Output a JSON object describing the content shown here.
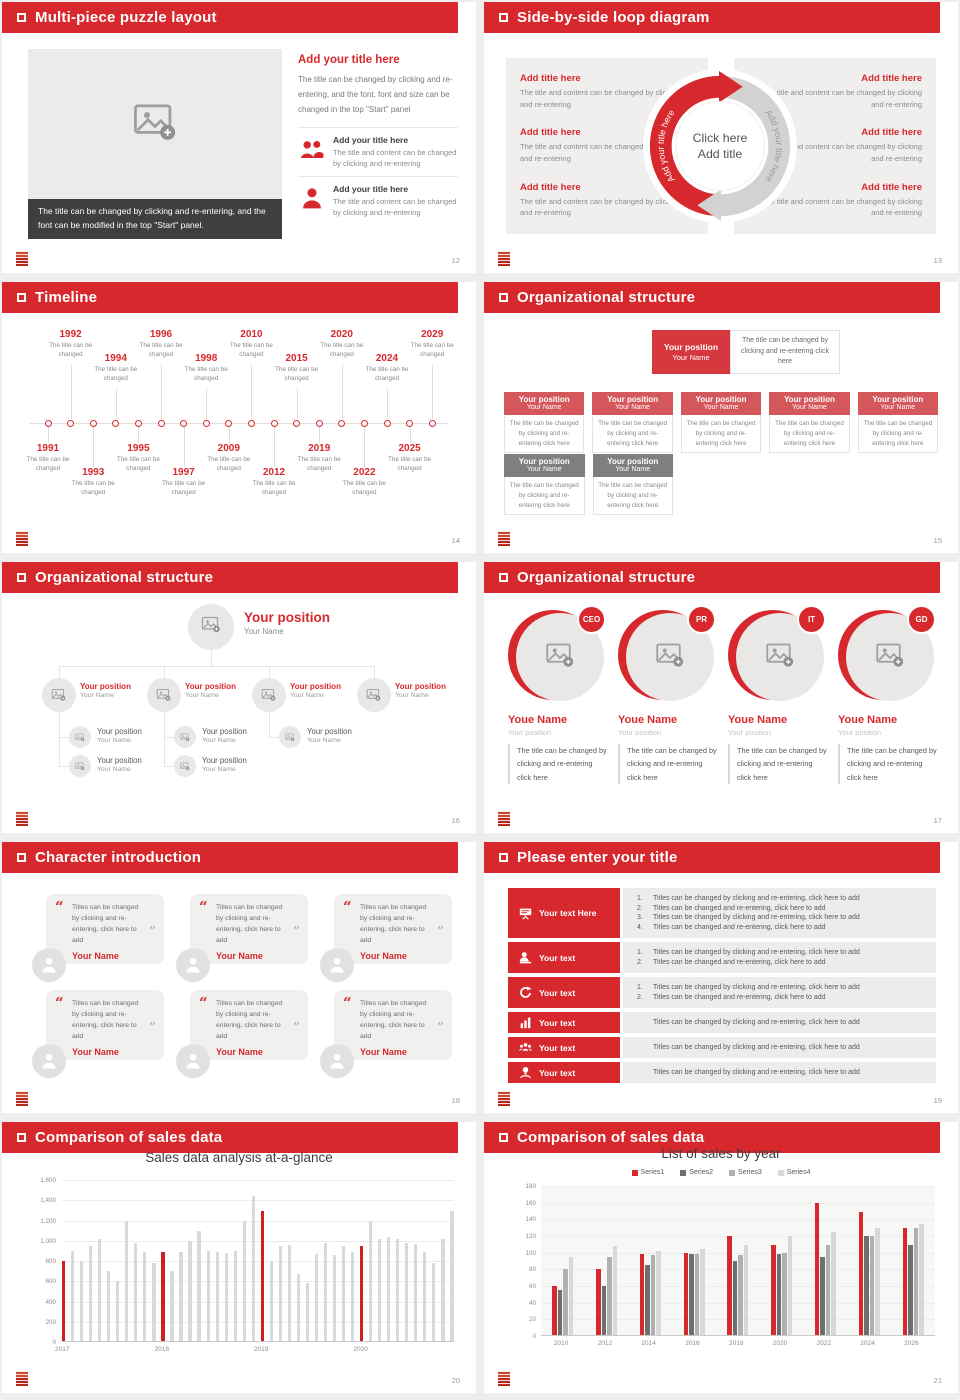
{
  "accent_color": "#d7282d",
  "slides": {
    "s12": {
      "header": "Multi-piece puzzle layout",
      "page": "12",
      "caption": "The title can be changed by clicking and re-entering, and the font can be modified in the top \"Start\" panel.",
      "right_title": "Add your title here",
      "right_body": "The title can be changed by clicking and re-entering, and the font, font and size can be changed in the top \"Start\" panel",
      "items": [
        {
          "icon": "people",
          "title": "Add your title here",
          "text": "The title and content can be changed by clicking and re-entering"
        },
        {
          "icon": "person",
          "title": "Add your title here",
          "text": "The title and content can be changed by clicking and re-entering"
        }
      ]
    },
    "s13": {
      "header": "Side-by-side loop diagram",
      "page": "13",
      "left_items": [
        {
          "title": "Add title here",
          "text": "The title and content can be changed by clicking and re-entering"
        },
        {
          "title": "Add title here",
          "text": "The title and content can be changed by clicking and re-entering"
        },
        {
          "title": "Add title here",
          "text": "The title and content can be changed by clicking and re-entering"
        }
      ],
      "right_items": [
        {
          "title": "Add title here",
          "text": "The title and content can be changed by clicking and re-entering"
        },
        {
          "title": "Add title here",
          "text": "The title and content can be changed by clicking and re-entering"
        },
        {
          "title": "Add title here",
          "text": "The title and content can be changed by clicking and re-entering"
        }
      ],
      "center_line1": "Click here",
      "center_line2": "Add title",
      "arc_text_left": "Add your title here",
      "arc_text_right": "Add your title here"
    },
    "s14": {
      "header": "Timeline",
      "page": "14",
      "items": [
        {
          "year": "1991",
          "caption": "The title can be changed",
          "side": "b1"
        },
        {
          "year": "1992",
          "caption": "The title can be changed",
          "side": "a2"
        },
        {
          "year": "1993",
          "caption": "The title can be changed",
          "side": "b2"
        },
        {
          "year": "1994",
          "caption": "The title can be changed",
          "side": "a1"
        },
        {
          "year": "1995",
          "caption": "The title can be changed",
          "side": "b1"
        },
        {
          "year": "1996",
          "caption": "The title can be changed",
          "side": "a2"
        },
        {
          "year": "1997",
          "caption": "The title can be changed",
          "side": "b2"
        },
        {
          "year": "1998",
          "caption": "The title can be changed",
          "side": "a1"
        },
        {
          "year": "2009",
          "caption": "The title can be changed",
          "side": "b1"
        },
        {
          "year": "2010",
          "caption": "The title can be changed",
          "side": "a2"
        },
        {
          "year": "2012",
          "caption": "The title can be changed",
          "side": "b2"
        },
        {
          "year": "2015",
          "caption": "The title can be changed",
          "side": "a1"
        },
        {
          "year": "2019",
          "caption": "The title can be changed",
          "side": "b1"
        },
        {
          "year": "2020",
          "caption": "The title can be changed",
          "side": "a2"
        },
        {
          "year": "2022",
          "caption": "The title can be changed",
          "side": "b2"
        },
        {
          "year": "2024",
          "caption": "The title can be changed",
          "side": "a1"
        },
        {
          "year": "2025",
          "caption": "The title can be changed",
          "side": "b1"
        },
        {
          "year": "2029",
          "caption": "The title can be changed",
          "side": "a2"
        }
      ]
    },
    "s15": {
      "header": "Organizational structure",
      "page": "15",
      "top": {
        "position": "Your position",
        "name": "Your Name",
        "note": "The title can be changed by clicking and re-entering click here"
      },
      "cards_red": [
        {
          "position": "Your position",
          "name": "Your Name",
          "text": "The title can be changed by clicking and re-entering click here"
        },
        {
          "position": "Your position",
          "name": "Your Name",
          "text": "The title can be changed by clicking and re-entering click here"
        },
        {
          "position": "Your position",
          "name": "Your Name",
          "text": "The title can be changed by clicking and re-entering click here"
        },
        {
          "position": "Your position",
          "name": "Your Name",
          "text": "The title can be changed by clicking and re-entering click here"
        },
        {
          "position": "Your position",
          "name": "Your Name",
          "text": "The title can be changed by clicking and re-entering click here"
        }
      ],
      "cards_gray": [
        {
          "position": "Your position",
          "name": "Your Name",
          "text": "The title can be changed by clicking and re-entering click here"
        },
        {
          "position": "Your position",
          "name": "Your Name",
          "text": "The title can be changed by clicking and re-entering click here"
        }
      ]
    },
    "s16": {
      "header": "Organizational structure",
      "page": "16",
      "root": {
        "position": "Your position",
        "name": "Your Name"
      },
      "branches": [
        {
          "position": "Your position",
          "name": "Your Name",
          "children": [
            {
              "position": "Your position",
              "name": "Your Name"
            },
            {
              "position": "Your position",
              "name": "Your Name"
            }
          ]
        },
        {
          "position": "Your position",
          "name": "Your Name",
          "children": [
            {
              "position": "Your position",
              "name": "Your Name"
            },
            {
              "position": "Your position",
              "name": "Your Name"
            }
          ]
        },
        {
          "position": "Your position",
          "name": "Your Name",
          "children": [
            {
              "position": "Your position",
              "name": "Your Name"
            }
          ]
        },
        {
          "position": "Your position",
          "name": "Your Name",
          "children": []
        }
      ]
    },
    "s17": {
      "header": "Organizational structure",
      "page": "17",
      "profiles": [
        {
          "badge": "CEO",
          "name": "Youe Name",
          "position": "Your position",
          "text": "The title can be changed by clicking and re-entering click here"
        },
        {
          "badge": "PR",
          "name": "Youe Name",
          "position": "Your position",
          "text": "The title can be changed by clicking and re-entering click here"
        },
        {
          "badge": "IT",
          "name": "Youe Name",
          "position": "Your position",
          "text": "The title can be changed by clicking and re-entering click here"
        },
        {
          "badge": "GD",
          "name": "Youe Name",
          "position": "Your position",
          "text": "The title can be changed by clicking and re-entering click here"
        }
      ]
    },
    "s18": {
      "header": "Character introduction",
      "page": "18",
      "open_quote": "“",
      "close_quote": "”",
      "cards": [
        {
          "quote": "Titles can be changed by clicking and re-entering, click here to add",
          "name": "Your Name"
        },
        {
          "quote": "Titles can be changed by clicking and re-entering, click here to add",
          "name": "Your Name"
        },
        {
          "quote": "Titles can be changed by clicking and re-entering, click here to add",
          "name": "Your Name"
        },
        {
          "quote": "Titles can be changed by clicking and re-entering, click here to add",
          "name": "Your Name"
        },
        {
          "quote": "Titles can be changed by clicking and re-entering, click here to add",
          "name": "Your Name"
        },
        {
          "quote": "Titles can be changed by clicking and re-entering, click here to add",
          "name": "Your Name"
        }
      ]
    },
    "s19": {
      "header": "Please enter your title",
      "page": "19",
      "rows": [
        {
          "icon": "projector",
          "label": "Your text Here",
          "lines": [
            {
              "n": "1.",
              "t": "Titles can be changed by clicking and re-entering, click here to add"
            },
            {
              "n": "2.",
              "t": "Titles can be changed and re-entering, click here to add"
            },
            {
              "n": "3.",
              "t": "Titles can be changed by clicking and re-entering, click here to add"
            },
            {
              "n": "4.",
              "t": "Titles can be changed and re-entering, click here to add"
            }
          ]
        },
        {
          "icon": "persondesk",
          "label": "Your text",
          "lines": [
            {
              "n": "1.",
              "t": "Titles can be changed by clicking and re-entering, click here to add"
            },
            {
              "n": "2.",
              "t": "Titles can be changed and re-entering, click here to add"
            }
          ]
        },
        {
          "icon": "cycle",
          "label": "Your text",
          "lines": [
            {
              "n": "1.",
              "t": "Titles can be changed by clicking and re-entering, click here to add"
            },
            {
              "n": "2.",
              "t": "Titles can be changed and re-entering, click here to add"
            }
          ]
        },
        {
          "icon": "bars",
          "label": "Your text",
          "lines": [
            {
              "n": "",
              "t": "Titles can be changed by clicking and re-entering, click here to add"
            }
          ]
        },
        {
          "icon": "group",
          "label": "Your text",
          "lines": [
            {
              "n": "",
              "t": "Titles can be changed by clicking and re-entering, click here to add"
            }
          ]
        },
        {
          "icon": "idea",
          "label": "Your text",
          "lines": [
            {
              "n": "",
              "t": "Titles can be changed by clicking and re-entering, click here to add"
            }
          ]
        }
      ]
    },
    "s20": {
      "header": "Comparison of sales data",
      "page": "20"
    },
    "s21": {
      "header": "Comparison of sales data",
      "page": "21"
    }
  },
  "chart_data": [
    {
      "type": "bar",
      "title": "Sales data analysis at-a-glance",
      "xlabel": "",
      "ylabel": "",
      "categories": [
        "2017",
        "2018",
        "2019",
        "2020"
      ],
      "category_indices": [
        0,
        11,
        22,
        33
      ],
      "values": [
        800,
        900,
        800,
        950,
        1020,
        700,
        600,
        1200,
        980,
        890,
        780,
        890,
        700,
        890,
        1000,
        1100,
        900,
        890,
        880,
        900,
        1200,
        1450,
        1300,
        800,
        950,
        960,
        670,
        580,
        870,
        980,
        860,
        950,
        890,
        950,
        1200,
        1020,
        1040,
        1020,
        980,
        970,
        890,
        780,
        1020,
        1300
      ],
      "highlight_indices": [
        0,
        11,
        22,
        33
      ],
      "bar_color": "#d9d9d9",
      "highlight_color": "#cf2020",
      "ylim": [
        0,
        1600
      ],
      "yticks": [
        "1,600",
        "1,400",
        "1,200",
        "1,000",
        "800",
        "600",
        "400",
        "200",
        "0"
      ],
      "grid": true,
      "legend_position": "none"
    },
    {
      "type": "bar",
      "title": "List of sales by year",
      "xlabel": "",
      "ylabel": "",
      "categories": [
        "2010",
        "2012",
        "2014",
        "2016",
        "2018",
        "2020",
        "2022",
        "2024",
        "2026"
      ],
      "series": [
        {
          "name": "Series1",
          "color": "#d7282d",
          "values": [
            60,
            80,
            98,
            100,
            120,
            110,
            160,
            150,
            130
          ]
        },
        {
          "name": "Series2",
          "color": "#6f6f6f",
          "values": [
            55,
            60,
            85,
            98,
            90,
            98,
            95,
            120,
            110
          ]
        },
        {
          "name": "Series3",
          "color": "#b0b0b0",
          "values": [
            80,
            95,
            97,
            99,
            97,
            100,
            110,
            120,
            130
          ]
        },
        {
          "name": "Series4",
          "color": "#d8d8d8",
          "values": [
            95,
            108,
            102,
            105,
            110,
            120,
            125,
            130,
            135
          ]
        }
      ],
      "ylim": [
        0,
        180
      ],
      "yticks": [
        "180",
        "160",
        "140",
        "120",
        "100",
        "80",
        "60",
        "40",
        "20",
        "0"
      ],
      "grid": true,
      "legend_position": "top"
    }
  ]
}
